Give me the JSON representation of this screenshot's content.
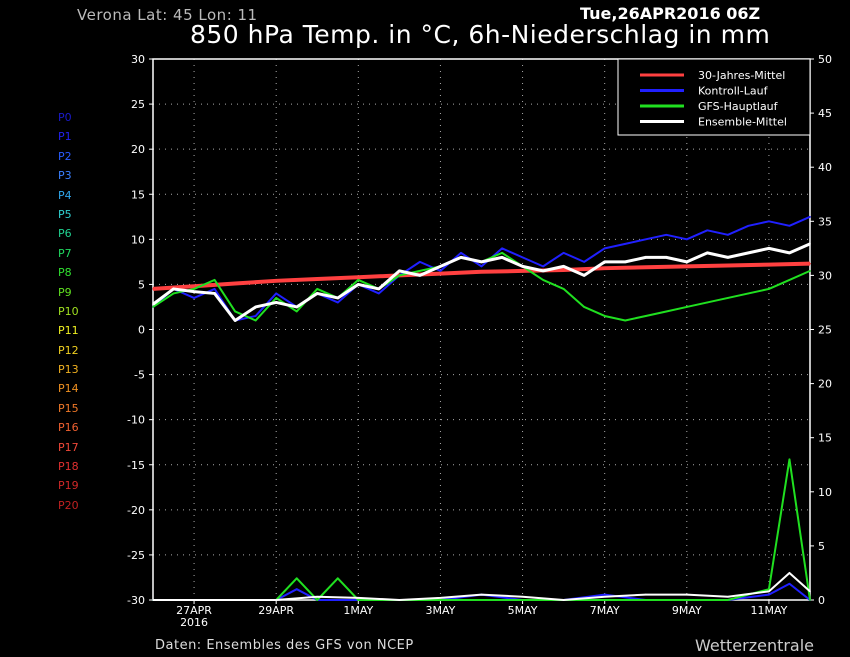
{
  "header": {
    "location": "Verona   Lat: 45 Lon: 11",
    "run": "Tue,26APR2016 06Z",
    "title": "850 hPa Temp. in °C, 6h-Niederschlag in mm"
  },
  "footer": {
    "source": "Daten: Ensembles des GFS von NCEP",
    "brand": "Wetterzentrale"
  },
  "members": [
    {
      "label": "P0",
      "color": "#1a1acc"
    },
    {
      "label": "P1",
      "color": "#2222ee"
    },
    {
      "label": "P2",
      "color": "#2a5cff"
    },
    {
      "label": "P3",
      "color": "#3a80ff"
    },
    {
      "label": "P4",
      "color": "#30a8ee"
    },
    {
      "label": "P5",
      "color": "#30d0d0"
    },
    {
      "label": "P6",
      "color": "#20d090"
    },
    {
      "label": "P7",
      "color": "#20d860"
    },
    {
      "label": "P8",
      "color": "#30e030"
    },
    {
      "label": "P9",
      "color": "#60e020"
    },
    {
      "label": "P10",
      "color": "#a0e020"
    },
    {
      "label": "P11",
      "color": "#f0f020"
    },
    {
      "label": "P12",
      "color": "#f0d020"
    },
    {
      "label": "P13",
      "color": "#f0b020"
    },
    {
      "label": "P14",
      "color": "#f09020"
    },
    {
      "label": "P15",
      "color": "#f07828"
    },
    {
      "label": "P16",
      "color": "#f06030"
    },
    {
      "label": "P17",
      "color": "#f04838"
    },
    {
      "label": "P18",
      "color": "#e03030"
    },
    {
      "label": "P19",
      "color": "#d02828"
    },
    {
      "label": "P20",
      "color": "#c02020"
    }
  ],
  "chart_data": {
    "type": "line",
    "title": "850 hPa Temp. in °C, 6h-Niederschlag in mm",
    "x_ticks": [
      "27APR",
      "29APR",
      "1MAY",
      "3MAY",
      "5MAY",
      "7MAY",
      "9MAY",
      "11MAY"
    ],
    "x_year": "2016",
    "x_range_days": [
      0,
      16
    ],
    "y_left": {
      "range": [
        -30,
        30
      ],
      "ticks": [
        30,
        25,
        20,
        15,
        10,
        5,
        0,
        -5,
        -10,
        -15,
        -20,
        -25,
        -30
      ],
      "unit": "°C"
    },
    "y_right": {
      "range": [
        0,
        50
      ],
      "ticks": [
        50,
        45,
        40,
        35,
        30,
        25,
        20,
        15,
        10,
        5,
        0
      ],
      "unit": "mm"
    },
    "grid": true,
    "legend_position": "top-right",
    "legend": [
      {
        "name": "30-Jahres-Mittel",
        "color": "#ff4040"
      },
      {
        "name": "Kontroll-Lauf",
        "color": "#2020ff"
      },
      {
        "name": "GFS-Hauptlauf",
        "color": "#20e020"
      },
      {
        "name": "Ensemble-Mittel",
        "color": "#ffffff"
      }
    ],
    "series": [
      {
        "name": "30-Jahres-Mittel",
        "axis": "temp",
        "color": "#ff4040",
        "x": [
          0,
          1,
          2,
          3,
          4,
          5,
          6,
          7,
          8,
          9,
          10,
          11,
          12,
          13,
          14,
          15,
          16
        ],
        "y": [
          4.5,
          4.8,
          5.1,
          5.4,
          5.6,
          5.8,
          6.0,
          6.2,
          6.4,
          6.5,
          6.6,
          6.8,
          6.9,
          7.0,
          7.1,
          7.2,
          7.3
        ]
      },
      {
        "name": "Kontroll-Lauf",
        "axis": "temp",
        "color": "#2020ff",
        "x": [
          0,
          0.5,
          1,
          1.5,
          2,
          2.5,
          3,
          3.5,
          4,
          4.5,
          5,
          5.5,
          6,
          6.5,
          7,
          7.5,
          8,
          8.5,
          9,
          9.5,
          10,
          10.5,
          11,
          11.5,
          12,
          12.5,
          13,
          13.5,
          14,
          14.5,
          15,
          15.5,
          16
        ],
        "y": [
          2.5,
          4.5,
          3.5,
          4.5,
          1.0,
          1.5,
          4.0,
          2.5,
          4.0,
          3.0,
          5.0,
          4.0,
          6.0,
          7.5,
          6.5,
          8.5,
          7.0,
          9.0,
          8.0,
          7.0,
          8.5,
          7.5,
          9.0,
          9.5,
          10.0,
          10.5,
          10.0,
          11.0,
          10.5,
          11.5,
          12.0,
          11.5,
          12.5
        ]
      },
      {
        "name": "GFS-Hauptlauf",
        "axis": "temp",
        "color": "#20e020",
        "x": [
          0,
          0.5,
          1,
          1.5,
          2,
          2.5,
          3,
          3.5,
          4,
          4.5,
          5,
          5.5,
          6,
          6.5,
          7,
          7.5,
          8,
          8.5,
          9,
          9.5,
          10,
          10.5,
          11,
          11.5,
          12,
          12.5,
          13,
          13.5,
          14,
          14.5,
          15,
          15.5,
          16
        ],
        "y": [
          2.5,
          4.0,
          4.5,
          5.5,
          2.0,
          1.0,
          3.5,
          2.0,
          4.5,
          3.5,
          5.5,
          4.5,
          6.0,
          6.5,
          7.0,
          8.0,
          7.5,
          8.5,
          7.0,
          5.5,
          4.5,
          2.5,
          1.5,
          1.0,
          1.5,
          2.0,
          2.5,
          3.0,
          3.5,
          4.0,
          4.5,
          5.5,
          6.5
        ]
      },
      {
        "name": "Ensemble-Mittel",
        "axis": "temp",
        "color": "#ffffff",
        "x": [
          0,
          0.5,
          1,
          1.5,
          2,
          2.5,
          3,
          3.5,
          4,
          4.5,
          5,
          5.5,
          6,
          6.5,
          7,
          7.5,
          8,
          8.5,
          9,
          9.5,
          10,
          10.5,
          11,
          11.5,
          12,
          12.5,
          13,
          13.5,
          14,
          14.5,
          15,
          15.5,
          16
        ],
        "y": [
          2.8,
          4.5,
          4.2,
          4.0,
          1.0,
          2.5,
          3.0,
          2.5,
          4.0,
          3.5,
          5.0,
          4.5,
          6.5,
          6.0,
          7.0,
          8.0,
          7.5,
          8.0,
          7.0,
          6.5,
          7.0,
          6.0,
          7.5,
          7.5,
          8.0,
          8.0,
          7.5,
          8.5,
          8.0,
          8.5,
          9.0,
          8.5,
          9.5
        ]
      },
      {
        "name": "Kontroll-Lauf Niederschlag",
        "axis": "precip",
        "color": "#2020ff",
        "x": [
          0,
          1,
          2,
          3,
          3.5,
          4,
          5,
          6,
          7,
          8,
          9,
          10,
          11,
          12,
          13,
          14,
          15,
          15.5,
          16
        ],
        "y": [
          0,
          0,
          0,
          0,
          1.0,
          0,
          0,
          0,
          0,
          0.5,
          0,
          0,
          0.5,
          0,
          0,
          0,
          0.5,
          1.5,
          0
        ]
      },
      {
        "name": "GFS-Hauptlauf Niederschlag",
        "axis": "precip",
        "color": "#20e020",
        "x": [
          0,
          1,
          2,
          3,
          3.5,
          4,
          4.5,
          5,
          6,
          7,
          8,
          9,
          10,
          11,
          12,
          13,
          14,
          15,
          15.5,
          16
        ],
        "y": [
          0,
          0,
          0,
          0,
          2.0,
          0,
          2.0,
          0,
          0,
          0,
          0,
          0,
          0,
          0,
          0,
          0,
          0,
          1.0,
          13.0,
          0
        ]
      },
      {
        "name": "Ensemble-Mittel Niederschlag",
        "axis": "precip",
        "color": "#ffffff",
        "x": [
          0,
          1,
          2,
          3,
          4,
          5,
          6,
          7,
          8,
          9,
          10,
          11,
          12,
          13,
          14,
          15,
          15.5,
          16
        ],
        "y": [
          0,
          0,
          0,
          0,
          0.3,
          0.2,
          0,
          0.2,
          0.5,
          0.3,
          0,
          0.3,
          0.5,
          0.5,
          0.3,
          0.8,
          2.5,
          0.8
        ]
      }
    ]
  }
}
